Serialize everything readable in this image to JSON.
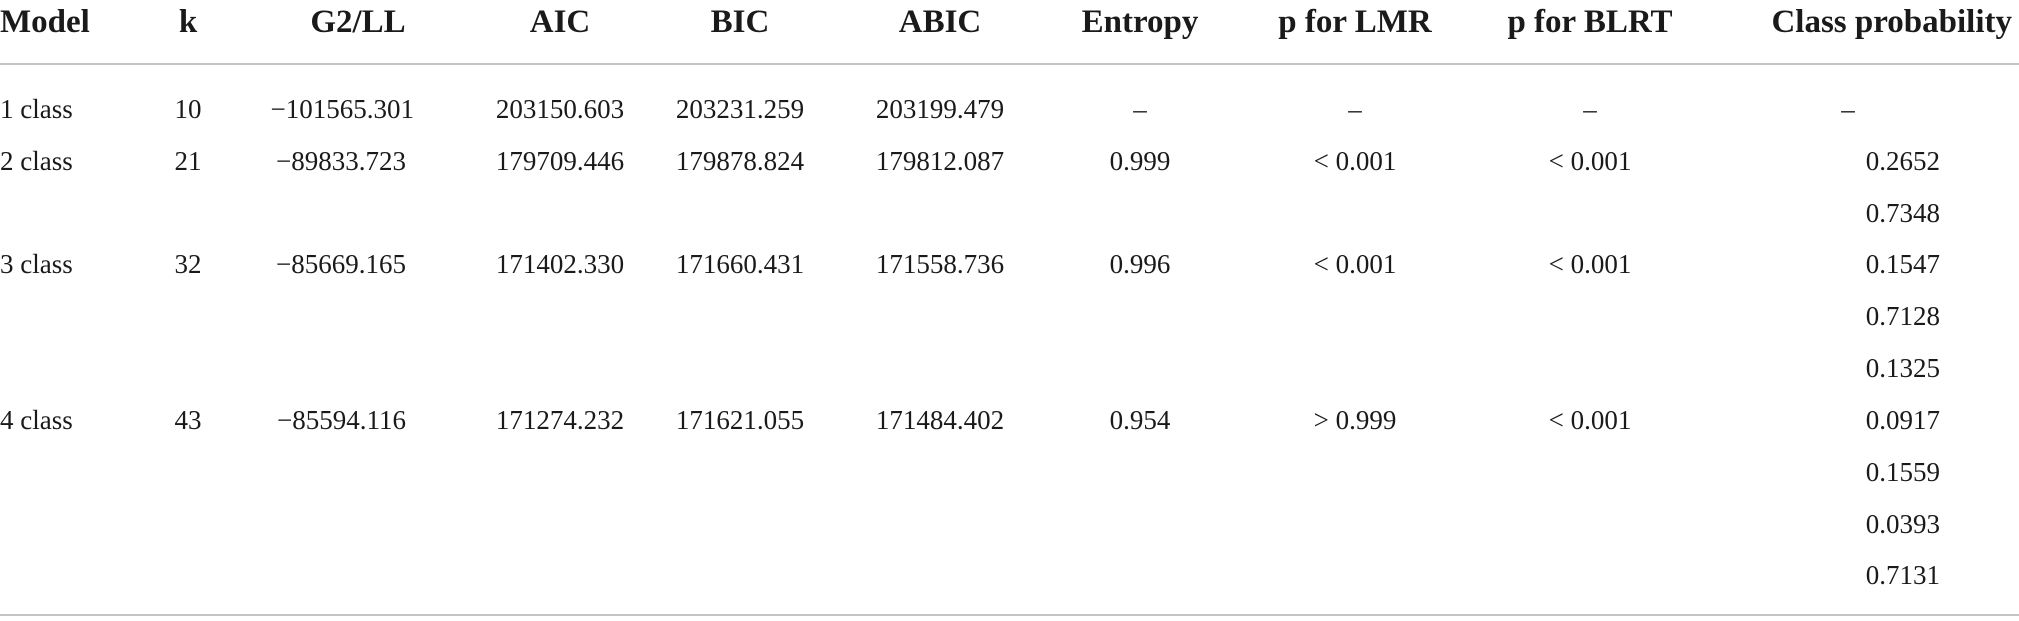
{
  "table": {
    "headers": [
      "Model",
      "k",
      "G2/LL",
      "AIC",
      "BIC",
      "ABIC",
      "Entropy",
      "p for LMR",
      "p for BLRT",
      "Class probability"
    ],
    "rows": [
      {
        "model": "1 class",
        "k": "10",
        "g2ll": "−101565.301",
        "aic": "203150.603",
        "bic": "203231.259",
        "abic": "203199.479",
        "entropy": "–",
        "p_lmr": "–",
        "p_blrt": "–",
        "class_prob": [
          "–"
        ]
      },
      {
        "model": "2 class",
        "k": "21",
        "g2ll": "−89833.723",
        "aic": "179709.446",
        "bic": "179878.824",
        "abic": "179812.087",
        "entropy": "0.999",
        "p_lmr": "< 0.001",
        "p_blrt": "< 0.001",
        "class_prob": [
          "0.2652",
          "0.7348"
        ]
      },
      {
        "model": "3 class",
        "k": "32",
        "g2ll": "−85669.165",
        "aic": "171402.330",
        "bic": "171660.431",
        "abic": "171558.736",
        "entropy": "0.996",
        "p_lmr": "< 0.001",
        "p_blrt": "< 0.001",
        "class_prob": [
          "0.1547",
          "0.7128",
          "0.1325"
        ]
      },
      {
        "model": "4 class",
        "k": "43",
        "g2ll": "−85594.116",
        "aic": "171274.232",
        "bic": "171621.055",
        "abic": "171484.402",
        "entropy": "0.954",
        "p_lmr": "> 0.999",
        "p_blrt": "< 0.001",
        "class_prob": [
          "0.0917",
          "0.1559",
          "0.0393",
          "0.7131"
        ]
      }
    ]
  }
}
